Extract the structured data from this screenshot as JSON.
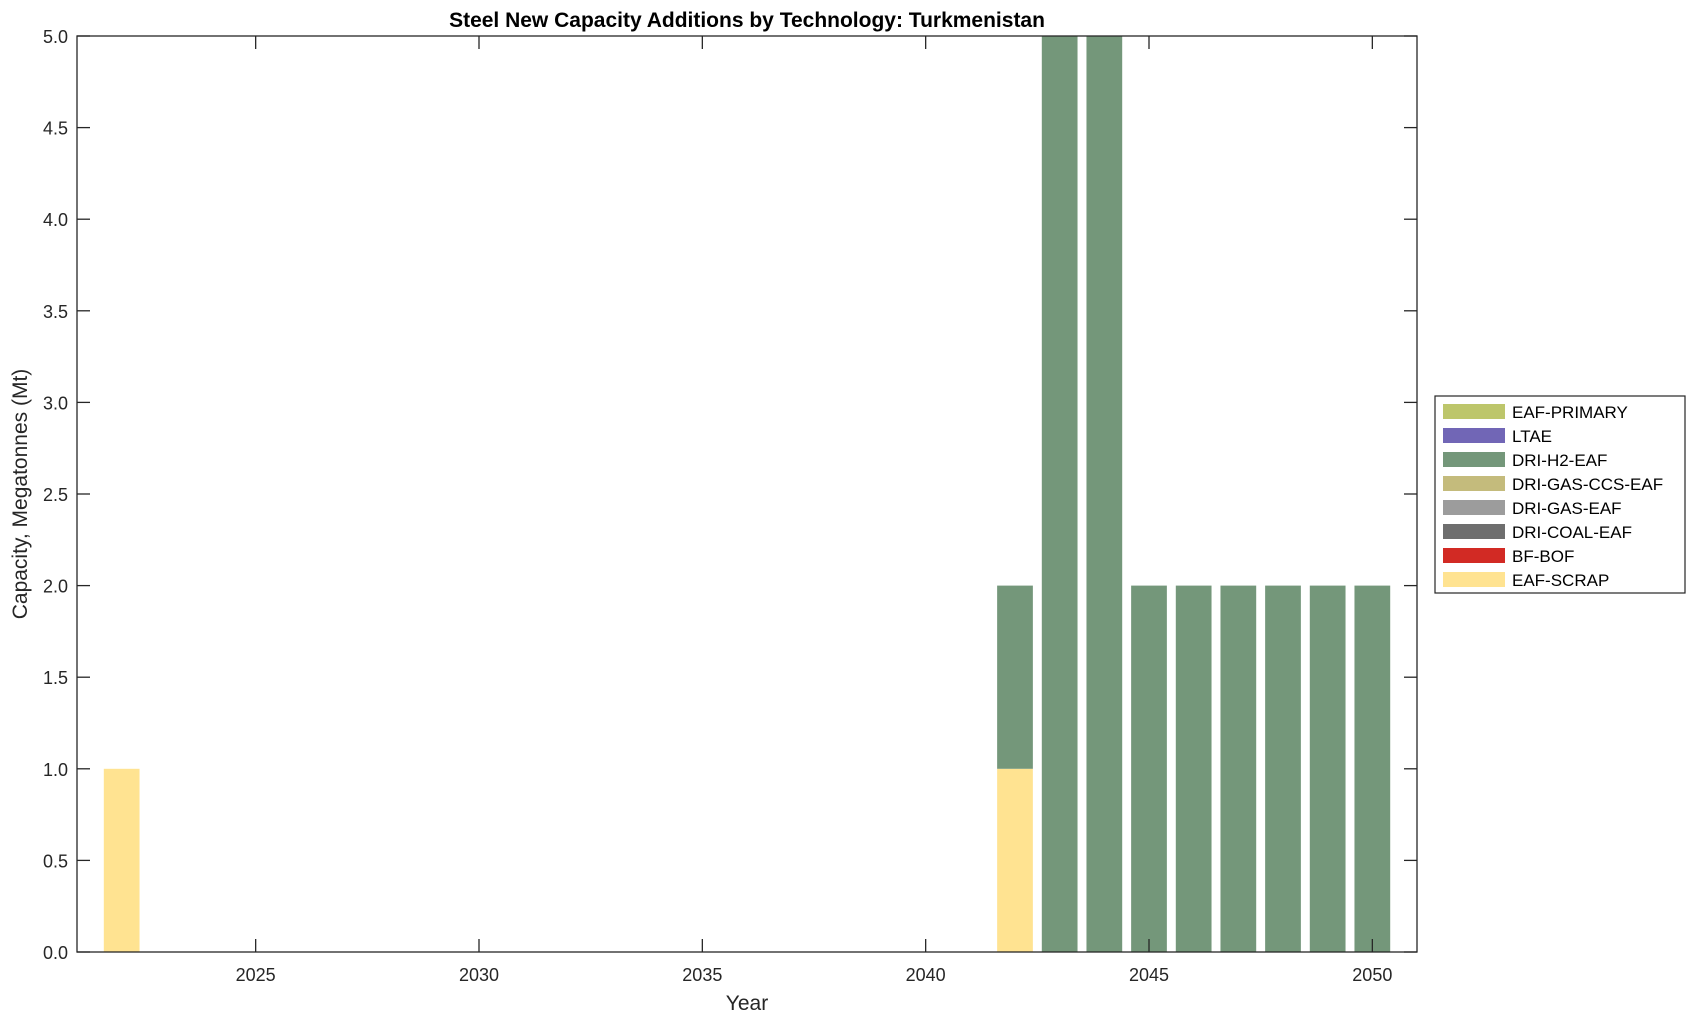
{
  "chart_data": {
    "type": "bar",
    "stacked": true,
    "title": "Steel New Capacity Additions by Technology: Turkmenistan",
    "xlabel": "Year",
    "ylabel": "Capacity, Megatonnes (Mt)",
    "xlim": [
      2021,
      2051
    ],
    "ylim": [
      0,
      5
    ],
    "xticks": [
      2025,
      2030,
      2035,
      2040,
      2045,
      2050
    ],
    "xtick_labels": [
      "2025",
      "2030",
      "2035",
      "2040",
      "2045",
      "2050"
    ],
    "yticks": [
      0,
      0.5,
      1,
      1.5,
      2,
      2.5,
      3,
      3.5,
      4,
      4.5,
      5
    ],
    "ytick_labels": [
      "0.0",
      "0.5",
      "1.0",
      "1.5",
      "2.0",
      "2.5",
      "3.0",
      "3.5",
      "4.0",
      "4.5",
      "5.0"
    ],
    "grid": false,
    "legend_position": "outside-right",
    "x": [
      2022,
      2023,
      2024,
      2025,
      2026,
      2027,
      2028,
      2029,
      2030,
      2031,
      2032,
      2033,
      2034,
      2035,
      2036,
      2037,
      2038,
      2039,
      2040,
      2041,
      2042,
      2043,
      2044,
      2045,
      2046,
      2047,
      2048,
      2049,
      2050
    ],
    "series": [
      {
        "name": "EAF-SCRAP",
        "color": "#FFE391",
        "values": [
          1,
          0,
          0,
          0,
          0,
          0,
          0,
          0,
          0,
          0,
          0,
          0,
          0,
          0,
          0,
          0,
          0,
          0,
          0,
          0,
          1,
          0,
          0,
          0,
          0,
          0,
          0,
          0,
          0
        ]
      },
      {
        "name": "BF-BOF",
        "color": "#D22A24",
        "values": [
          0,
          0,
          0,
          0,
          0,
          0,
          0,
          0,
          0,
          0,
          0,
          0,
          0,
          0,
          0,
          0,
          0,
          0,
          0,
          0,
          0,
          0,
          0,
          0,
          0,
          0,
          0,
          0,
          0
        ]
      },
      {
        "name": "DRI-COAL-EAF",
        "color": "#6E6E6E",
        "values": [
          0,
          0,
          0,
          0,
          0,
          0,
          0,
          0,
          0,
          0,
          0,
          0,
          0,
          0,
          0,
          0,
          0,
          0,
          0,
          0,
          0,
          0,
          0,
          0,
          0,
          0,
          0,
          0,
          0
        ]
      },
      {
        "name": "DRI-GAS-EAF",
        "color": "#9C9C9C",
        "values": [
          0,
          0,
          0,
          0,
          0,
          0,
          0,
          0,
          0,
          0,
          0,
          0,
          0,
          0,
          0,
          0,
          0,
          0,
          0,
          0,
          0,
          0,
          0,
          0,
          0,
          0,
          0,
          0,
          0
        ]
      },
      {
        "name": "DRI-GAS-CCS-EAF",
        "color": "#C4BB7C",
        "values": [
          0,
          0,
          0,
          0,
          0,
          0,
          0,
          0,
          0,
          0,
          0,
          0,
          0,
          0,
          0,
          0,
          0,
          0,
          0,
          0,
          0,
          0,
          0,
          0,
          0,
          0,
          0,
          0,
          0
        ]
      },
      {
        "name": "DRI-H2-EAF",
        "color": "#74977A",
        "values": [
          0,
          0,
          0,
          0,
          0,
          0,
          0,
          0,
          0,
          0,
          0,
          0,
          0,
          0,
          0,
          0,
          0,
          0,
          0,
          0,
          1,
          5,
          5,
          2,
          2,
          2,
          2,
          2,
          2
        ]
      },
      {
        "name": "LTAE",
        "color": "#7166B6",
        "values": [
          0,
          0,
          0,
          0,
          0,
          0,
          0,
          0,
          0,
          0,
          0,
          0,
          0,
          0,
          0,
          0,
          0,
          0,
          0,
          0,
          0,
          0,
          0,
          0,
          0,
          0,
          0,
          0,
          0
        ]
      },
      {
        "name": "EAF-PRIMARY",
        "color": "#BDC66B",
        "values": [
          0,
          0,
          0,
          0,
          0,
          0,
          0,
          0,
          0,
          0,
          0,
          0,
          0,
          0,
          0,
          0,
          0,
          0,
          0,
          0,
          0,
          0,
          0,
          0,
          0,
          0,
          0,
          0,
          0
        ]
      }
    ],
    "legend_order": [
      "EAF-PRIMARY",
      "LTAE",
      "DRI-H2-EAF",
      "DRI-GAS-CCS-EAF",
      "DRI-GAS-EAF",
      "DRI-COAL-EAF",
      "BF-BOF",
      "EAF-SCRAP"
    ]
  }
}
